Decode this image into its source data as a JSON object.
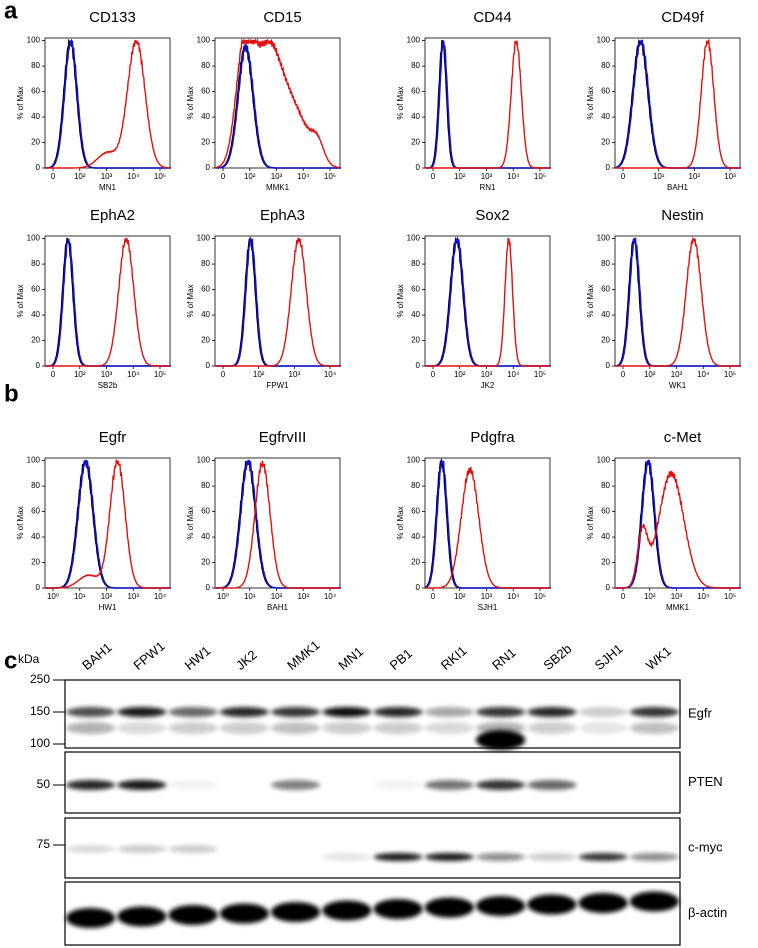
{
  "panels": {
    "a": "a",
    "b": "b",
    "c": "c"
  },
  "flow": {
    "y_axis_label": "% of Max",
    "yticks": [
      "0",
      "20",
      "40",
      "60",
      "80",
      "100"
    ],
    "histograms": [
      {
        "title": "CD133",
        "sample": "MN1",
        "xticks": [
          "0",
          "10²",
          "10³",
          "10⁴",
          "10⁵"
        ]
      },
      {
        "title": "CD15",
        "sample": "MMK1",
        "xticks": [
          "0",
          "10²",
          "10³",
          "10⁴",
          "10⁵"
        ]
      },
      {
        "title": "CD44",
        "sample": "RN1",
        "xticks": [
          "0",
          "10²",
          "10³",
          "10⁴",
          "10⁵"
        ]
      },
      {
        "title": "CD49f",
        "sample": "BAH1",
        "xticks": [
          "0",
          "10¹",
          "10²",
          "10³"
        ]
      },
      {
        "title": "EphA2",
        "sample": "SB2b",
        "xticks": [
          "0",
          "10²",
          "10³",
          "10⁴",
          "10⁵"
        ]
      },
      {
        "title": "EphA3",
        "sample": "FPW1",
        "xticks": [
          "0",
          "10²",
          "10³",
          "10⁴"
        ]
      },
      {
        "title": "Sox2",
        "sample": "JK2",
        "xticks": [
          "0",
          "10²",
          "10³",
          "10⁴",
          "10⁵"
        ]
      },
      {
        "title": "Nestin",
        "sample": "WK1",
        "xticks": [
          "0",
          "10²",
          "10³",
          "10⁴",
          "10⁵"
        ]
      },
      {
        "title": "Egfr",
        "sample": "HW1",
        "xticks": [
          "10⁰",
          "10¹",
          "10²",
          "10³",
          "10⁴"
        ]
      },
      {
        "title": "EgfrvIII",
        "sample": "BAH1",
        "xticks": [
          "10⁰",
          "10¹",
          "10²",
          "10³",
          "10⁴"
        ]
      },
      {
        "title": "Pdgfra",
        "sample": "SJH1",
        "xticks": [
          "0",
          "10²",
          "10³",
          "10⁴",
          "10⁵"
        ]
      },
      {
        "title": "c-Met",
        "sample": "MMK1",
        "xticks": [
          "0",
          "10²",
          "10³",
          "10⁴",
          "10⁵"
        ]
      }
    ]
  },
  "blot": {
    "unit": "kDa",
    "lanes": [
      "BAH1",
      "FPW1",
      "HW1",
      "JK2",
      "MMK1",
      "MN1",
      "PB1",
      "RKI1",
      "RN1",
      "SB2b",
      "SJH1",
      "WK1"
    ],
    "markers": [
      "250",
      "150",
      "100",
      "50",
      "75"
    ],
    "bands": [
      "Egfr",
      "PTEN",
      "c-myc",
      "β-actin"
    ]
  }
}
